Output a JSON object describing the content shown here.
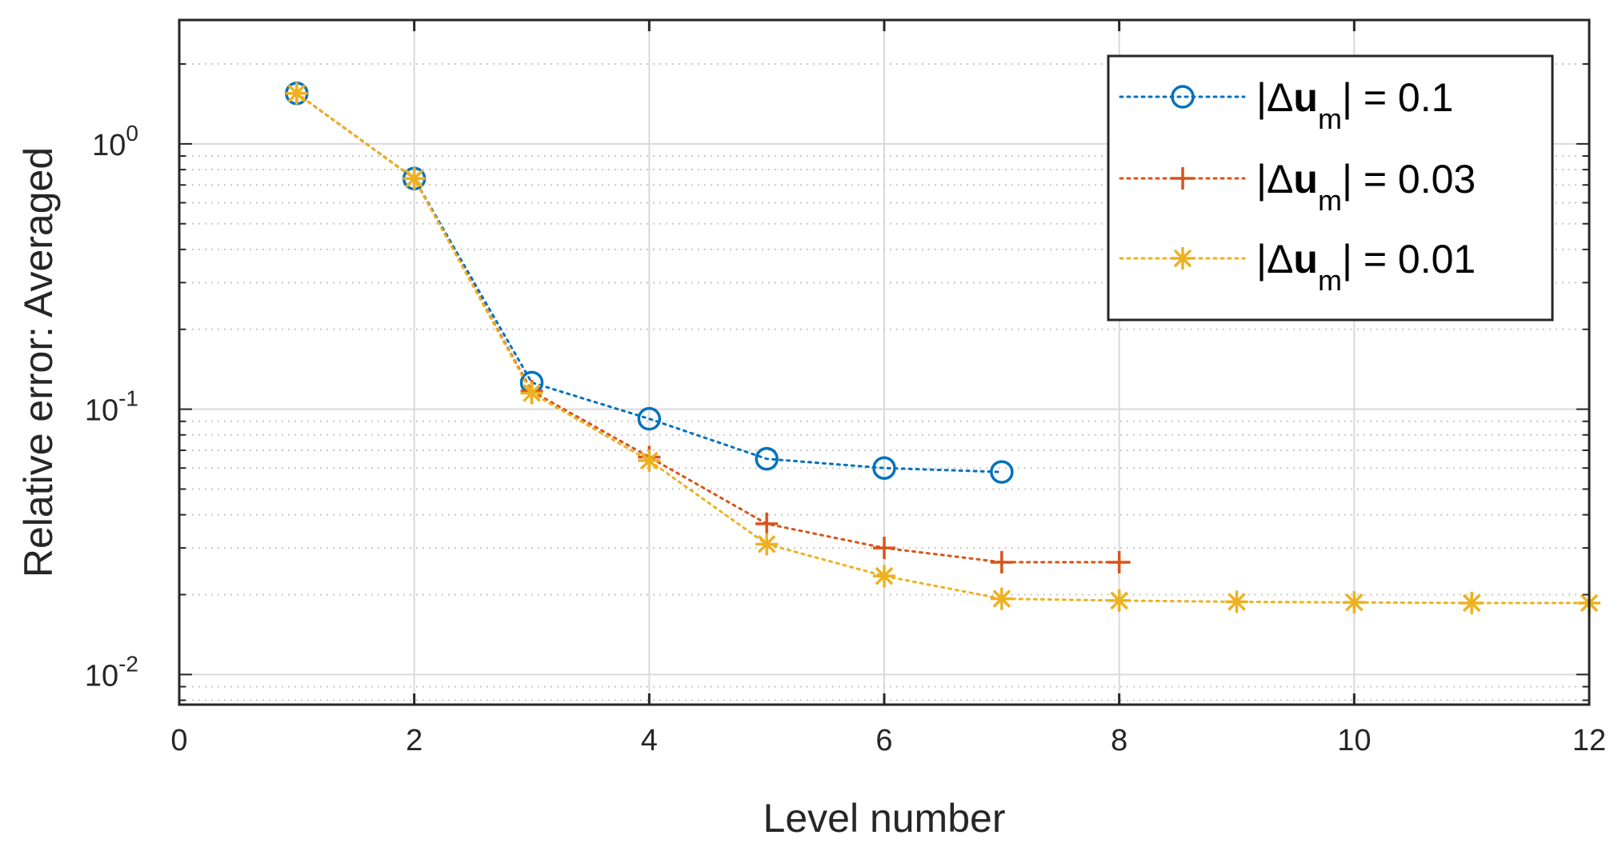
{
  "chart_data": {
    "type": "line",
    "xlabel": "Level number",
    "ylabel": "Relative error: Averaged",
    "xlim": [
      0,
      12
    ],
    "ylim": [
      0.0077,
      2.93
    ],
    "yscale": "log",
    "grid": true,
    "legend_position": "top-right",
    "x_ticks": [
      0,
      2,
      4,
      6,
      8,
      10,
      12
    ],
    "x_tick_labels": [
      "0",
      "2",
      "4",
      "6",
      "8",
      "10",
      "12"
    ],
    "y_ticks": [
      {
        "value": 1,
        "base": "10",
        "exponent": "0"
      },
      {
        "value": 0.1,
        "base": "10",
        "exponent": "-1"
      },
      {
        "value": 0.01,
        "base": "10",
        "exponent": "-2"
      }
    ],
    "series": [
      {
        "name": "|Δu_m| = 0.1",
        "legend_prefix": "|Δ",
        "legend_bold": "u",
        "legend_sub": "m",
        "legend_suffix": "| = 0.1",
        "color": "#0072BD",
        "marker": "circle",
        "x": [
          1,
          2,
          3,
          4,
          5,
          6,
          7
        ],
        "values": [
          1.55,
          0.74,
          0.126,
          0.092,
          0.065,
          0.06,
          0.058
        ]
      },
      {
        "name": "|Δu_m| = 0.03",
        "legend_prefix": "|Δ",
        "legend_bold": "u",
        "legend_sub": "m",
        "legend_suffix": "| = 0.03",
        "color": "#D95319",
        "marker": "plus",
        "x": [
          1,
          2,
          3,
          4,
          5,
          6,
          7,
          8
        ],
        "values": [
          1.55,
          0.74,
          0.117,
          0.066,
          0.037,
          0.03,
          0.0265,
          0.0265
        ]
      },
      {
        "name": "|Δu_m| = 0.01",
        "legend_prefix": "|Δ",
        "legend_bold": "u",
        "legend_sub": "m",
        "legend_suffix": "| = 0.01",
        "color": "#EDB120",
        "marker": "asterisk",
        "x": [
          1,
          2,
          3,
          4,
          5,
          6,
          7,
          8,
          9,
          10,
          11,
          12
        ],
        "values": [
          1.55,
          0.74,
          0.115,
          0.064,
          0.031,
          0.0235,
          0.0193,
          0.019,
          0.0188,
          0.0187,
          0.0186,
          0.0186
        ]
      }
    ]
  }
}
